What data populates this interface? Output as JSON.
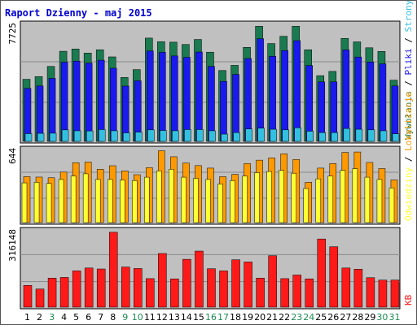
{
  "title": "Raport Dzienny -  maj 2015",
  "colors": {
    "title": "#0000cc",
    "panel_bg": "#c0c0c0",
    "visits": "#1a7a50",
    "pages": "#1a1aee",
    "files": "#33c0e0",
    "hits": "#ff9900",
    "sites": "#ffff33",
    "kb": "#ff1a1a",
    "weekday": "#000000",
    "weekend": "#1a8a50"
  },
  "days": [
    "1",
    "2",
    "3",
    "4",
    "5",
    "6",
    "7",
    "8",
    "9",
    "10",
    "11",
    "12",
    "13",
    "14",
    "15",
    "16",
    "17",
    "18",
    "19",
    "20",
    "21",
    "22",
    "23",
    "24",
    "25",
    "26",
    "27",
    "28",
    "29",
    "30",
    "31"
  ],
  "weekend_days": [
    3,
    9,
    10,
    16,
    17,
    23,
    24,
    30,
    31
  ],
  "panels": {
    "top": {
      "max_label": "7725",
      "side_labels": [
        {
          "text": "Wywołania",
          "color": "#1a7a50"
        },
        {
          "text": " / ",
          "color": "#000000"
        },
        {
          "text": "Pliki",
          "color": "#1a1aee"
        },
        {
          "text": " / ",
          "color": "#000000"
        },
        {
          "text": "Strony",
          "color": "#33c0e0"
        }
      ]
    },
    "middle": {
      "max_label": "644",
      "side_labels": [
        {
          "text": "Odwiedziny",
          "color": "#ffff33"
        },
        {
          "text": " / ",
          "color": "#000000"
        },
        {
          "text": "Lokalizacje",
          "color": "#ff9900"
        }
      ]
    },
    "bottom": {
      "max_label": "316148",
      "side_labels": [
        {
          "text": "KB",
          "color": "#ff1a1a"
        }
      ]
    }
  },
  "chart_data": {
    "type": "bar",
    "title": "Raport Dzienny -  maj 2015",
    "categories": [
      "1",
      "2",
      "3",
      "4",
      "5",
      "6",
      "7",
      "8",
      "9",
      "10",
      "11",
      "12",
      "13",
      "14",
      "15",
      "16",
      "17",
      "18",
      "19",
      "20",
      "21",
      "22",
      "23",
      "24",
      "25",
      "26",
      "27",
      "28",
      "29",
      "30",
      "31"
    ],
    "top_panel": {
      "ylim": [
        0,
        7725
      ],
      "series": [
        {
          "name": "Wywołania",
          "values": [
            4100,
            4280,
            4950,
            5950,
            6100,
            5830,
            6050,
            5580,
            4220,
            4740,
            6820,
            6580,
            6550,
            6400,
            6730,
            5890,
            4680,
            5020,
            6210,
            7600,
            6460,
            6940,
            7600,
            6050,
            4340,
            4620,
            6800,
            6570,
            6180,
            5940,
            4040
          ]
        },
        {
          "name": "Pliki",
          "values": [
            3500,
            3660,
            4160,
            5230,
            5300,
            5170,
            5360,
            4830,
            3650,
            4000,
            5970,
            5880,
            5640,
            5550,
            5900,
            4950,
            3960,
            4420,
            5470,
            6780,
            5620,
            6000,
            6650,
            5010,
            3930,
            3930,
            6040,
            5570,
            5240,
            5120,
            3660
          ]
        },
        {
          "name": "Strony",
          "values": [
            510,
            530,
            540,
            760,
            700,
            690,
            780,
            700,
            560,
            610,
            760,
            720,
            700,
            780,
            780,
            700,
            480,
            580,
            820,
            870,
            800,
            760,
            900,
            670,
            580,
            580,
            850,
            800,
            760,
            700,
            500
          ]
        }
      ]
    },
    "middle_panel": {
      "ylim": [
        0,
        644
      ],
      "series": [
        {
          "name": "Lokalizacje",
          "values": [
            405,
            401,
            395,
            445,
            528,
            533,
            470,
            501,
            455,
            422,
            484,
            633,
            580,
            525,
            502,
            480,
            405,
            425,
            520,
            550,
            570,
            606,
            556,
            355,
            480,
            520,
            618,
            622,
            530,
            476,
            376
          ]
        },
        {
          "name": "Odwiedziny",
          "values": [
            350,
            355,
            345,
            380,
            410,
            430,
            380,
            380,
            375,
            370,
            400,
            455,
            470,
            400,
            390,
            380,
            340,
            370,
            410,
            440,
            450,
            460,
            435,
            300,
            385,
            410,
            460,
            475,
            400,
            380,
            305
          ]
        }
      ]
    },
    "bottom_panel": {
      "ylim": [
        0,
        316148
      ],
      "series": [
        {
          "name": "KB",
          "values": [
            90000,
            75000,
            120000,
            123000,
            150000,
            162000,
            158000,
            310000,
            166000,
            160000,
            118000,
            222000,
            117000,
            198000,
            232000,
            159000,
            150000,
            196000,
            187000,
            120000,
            213000,
            118000,
            133000,
            117000,
            282000,
            250000,
            162000,
            157000,
            122000,
            112000,
            112000
          ]
        }
      ]
    }
  }
}
